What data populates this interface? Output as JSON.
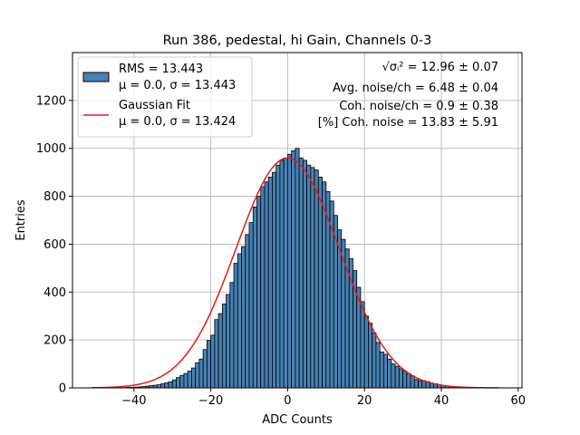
{
  "chart_data": {
    "type": "bar",
    "title": "Run 386, pedestal, hi Gain, Channels 0-3",
    "xlabel": "ADC Counts",
    "ylabel": "Entries",
    "xlim": [
      -56,
      61
    ],
    "ylim": [
      0,
      1400
    ],
    "xticks": [
      -40,
      -20,
      0,
      20,
      40,
      60
    ],
    "xtick_labels": [
      "−40",
      "−20",
      "0",
      "20",
      "40",
      "60"
    ],
    "yticks": [
      0,
      200,
      400,
      600,
      800,
      1000,
      1200
    ],
    "yticks_labels": [
      "0",
      "200",
      "400",
      "600",
      "800",
      "1000",
      "1200"
    ],
    "grid": true,
    "legend_position": "top-left",
    "colors": {
      "bars": "#4682b4",
      "bar_edge": "#000000",
      "fit": "#e41a1c",
      "grid": "#b0b0b0"
    },
    "histogram": {
      "name": "RMS = 13.443",
      "name_line2": "μ = 0.0, σ = 13.443",
      "bin_width": 1,
      "bin_start": -51,
      "counts": [
        0,
        0,
        0,
        0,
        0,
        0,
        0,
        1,
        1,
        2,
        2,
        3,
        4,
        5,
        7,
        9,
        11,
        13,
        17,
        21,
        25,
        33,
        43,
        52,
        60,
        70,
        83,
        105,
        120,
        160,
        198,
        220,
        285,
        310,
        350,
        390,
        440,
        520,
        560,
        590,
        640,
        690,
        755,
        800,
        840,
        860,
        880,
        900,
        930,
        950,
        960,
        975,
        990,
        1000,
        960,
        950,
        930,
        920,
        910,
        880,
        860,
        820,
        780,
        720,
        660,
        620,
        580,
        540,
        490,
        420,
        360,
        300,
        270,
        230,
        190,
        150,
        140,
        120,
        100,
        90,
        80,
        70,
        60,
        50,
        35,
        30,
        30,
        26,
        20,
        17,
        13,
        10,
        7,
        5,
        4,
        3,
        2,
        1,
        1,
        0,
        0,
        0,
        0,
        0,
        0,
        0
      ]
    },
    "fit": {
      "name": "Gaussian Fit",
      "name_line2": "μ = 0.0, σ = 13.424",
      "mu": 0.0,
      "sigma": 13.424,
      "amplitude": 960,
      "x_range": [
        -51,
        55
      ]
    },
    "annotations": [
      "√σᵢ² = 12.96 ± 0.07",
      "Avg. noise/ch = 6.48 ± 0.04",
      "Coh. noise/ch = 0.9 ± 0.38",
      "[%] Coh. noise = 13.83 ± 5.91"
    ]
  }
}
